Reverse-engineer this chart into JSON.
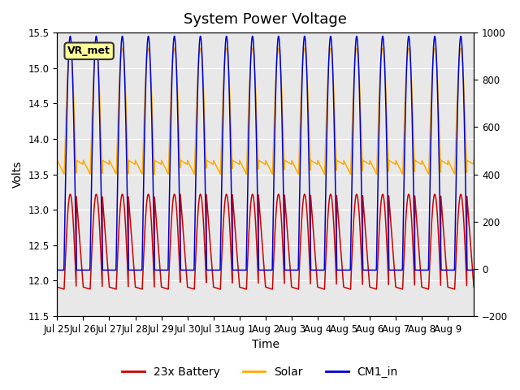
{
  "title": "System Power Voltage",
  "xlabel": "Time",
  "ylabel": "Volts",
  "ylim_left": [
    11.5,
    15.5
  ],
  "ylim_right": [
    -200,
    1000
  ],
  "yticks_left": [
    11.5,
    12.0,
    12.5,
    13.0,
    13.5,
    14.0,
    14.5,
    15.0,
    15.5
  ],
  "yticks_right": [
    -200,
    0,
    200,
    400,
    600,
    800,
    1000
  ],
  "bg_color": "#e8e8e8",
  "fig_color": "#ffffff",
  "annotation_text": "VR_met",
  "legend_labels": [
    "23x Battery",
    "Solar",
    "CM1_in"
  ],
  "line_colors": [
    "#cc0000",
    "#ffaa00",
    "#0000cc"
  ],
  "n_days": 16,
  "title_fontsize": 13,
  "label_fontsize": 10,
  "tick_fontsize": 8.5,
  "legend_fontsize": 10,
  "grid_color": "#ffffff",
  "xtick_labels": [
    "Jul 25",
    "Jul 26",
    "Jul 27",
    "Jul 28",
    "Jul 29",
    "Jul 30",
    "Jul 31",
    "Aug 1",
    "Aug 2",
    "Aug 3",
    "Aug 4",
    "Aug 5",
    "Aug 6",
    "Aug 7",
    "Aug 8",
    "Aug 9"
  ],
  "line_width": 1.1,
  "sunrise": 0.27,
  "sunset": 0.73,
  "solar_night_high": 13.7,
  "solar_night_low": 13.5,
  "solar_day_peak": 15.28,
  "bat_night": 11.91,
  "bat_day_peak": 13.22,
  "cm1_night": 12.15,
  "cm1_day_peak": 15.45
}
